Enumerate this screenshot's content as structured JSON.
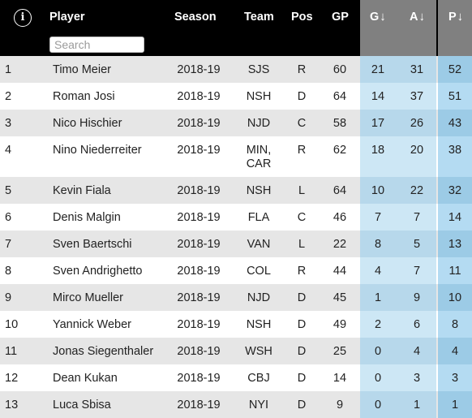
{
  "header": {
    "info_icon_glyph": "i",
    "player": "Player",
    "season": "Season",
    "team": "Team",
    "pos": "Pos",
    "gp": "GP",
    "g": "G",
    "a": "A",
    "p": "P",
    "sort_arrow": "↓",
    "search_placeholder": "Search"
  },
  "colors": {
    "header_bg": "#000000",
    "sort_header_bg": "#808080",
    "row_even": "#ffffff",
    "row_odd": "#e6e6e6",
    "ga_even": "#cde7f5",
    "ga_odd": "#b7d8eb",
    "p_even": "#b4dbf2",
    "p_odd": "#9ccbe6"
  },
  "rows": [
    {
      "rank": "1",
      "player": "Timo Meier",
      "season": "2018-19",
      "team": "SJS",
      "pos": "R",
      "gp": "60",
      "g": "21",
      "a": "31",
      "p": "52"
    },
    {
      "rank": "2",
      "player": "Roman Josi",
      "season": "2018-19",
      "team": "NSH",
      "pos": "D",
      "gp": "64",
      "g": "14",
      "a": "37",
      "p": "51"
    },
    {
      "rank": "3",
      "player": "Nico Hischier",
      "season": "2018-19",
      "team": "NJD",
      "pos": "C",
      "gp": "58",
      "g": "17",
      "a": "26",
      "p": "43"
    },
    {
      "rank": "4",
      "player": "Nino Niederreiter",
      "season": "2018-19",
      "team": "MIN,\nCAR",
      "pos": "R",
      "gp": "62",
      "g": "18",
      "a": "20",
      "p": "38"
    },
    {
      "rank": "5",
      "player": "Kevin Fiala",
      "season": "2018-19",
      "team": "NSH",
      "pos": "L",
      "gp": "64",
      "g": "10",
      "a": "22",
      "p": "32"
    },
    {
      "rank": "6",
      "player": "Denis Malgin",
      "season": "2018-19",
      "team": "FLA",
      "pos": "C",
      "gp": "46",
      "g": "7",
      "a": "7",
      "p": "14"
    },
    {
      "rank": "7",
      "player": "Sven Baertschi",
      "season": "2018-19",
      "team": "VAN",
      "pos": "L",
      "gp": "22",
      "g": "8",
      "a": "5",
      "p": "13"
    },
    {
      "rank": "8",
      "player": "Sven Andrighetto",
      "season": "2018-19",
      "team": "COL",
      "pos": "R",
      "gp": "44",
      "g": "4",
      "a": "7",
      "p": "11"
    },
    {
      "rank": "9",
      "player": "Mirco Mueller",
      "season": "2018-19",
      "team": "NJD",
      "pos": "D",
      "gp": "45",
      "g": "1",
      "a": "9",
      "p": "10"
    },
    {
      "rank": "10",
      "player": "Yannick Weber",
      "season": "2018-19",
      "team": "NSH",
      "pos": "D",
      "gp": "49",
      "g": "2",
      "a": "6",
      "p": "8"
    },
    {
      "rank": "11",
      "player": "Jonas Siegenthaler",
      "season": "2018-19",
      "team": "WSH",
      "pos": "D",
      "gp": "25",
      "g": "0",
      "a": "4",
      "p": "4"
    },
    {
      "rank": "12",
      "player": "Dean Kukan",
      "season": "2018-19",
      "team": "CBJ",
      "pos": "D",
      "gp": "14",
      "g": "0",
      "a": "3",
      "p": "3"
    },
    {
      "rank": "13",
      "player": "Luca Sbisa",
      "season": "2018-19",
      "team": "NYI",
      "pos": "D",
      "gp": "9",
      "g": "0",
      "a": "1",
      "p": "1"
    }
  ]
}
